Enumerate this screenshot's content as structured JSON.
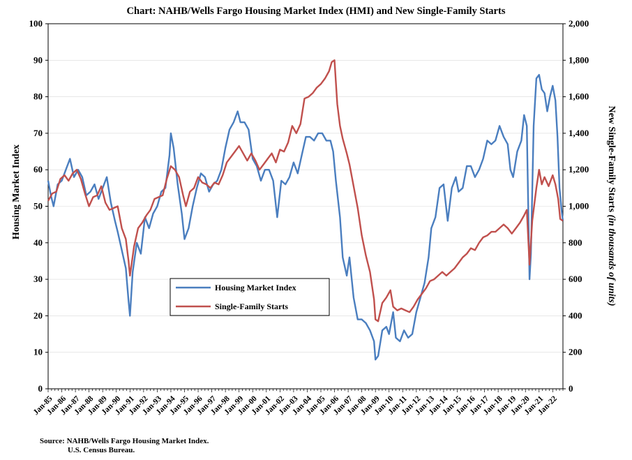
{
  "chart_data": {
    "type": "line",
    "title": "Chart:  NAHB/Wells Fargo Housing Market Index (HMI) and New Single-Family Starts",
    "ylabel_left": "Housing Market Index",
    "ylabel_right_main": "New Single-Family Starts ",
    "ylabel_right_italic": "(in thousands of units)",
    "y_left_lim": [
      0,
      100
    ],
    "y_right_lim": [
      0,
      2000
    ],
    "y_left_ticks": [
      "0",
      "10",
      "20",
      "30",
      "40",
      "50",
      "60",
      "70",
      "80",
      "90",
      "100"
    ],
    "y_right_ticks": [
      "0",
      "200",
      "400",
      "600",
      "800",
      "1,000",
      "1,200",
      "1,400",
      "1,600",
      "1,800",
      "2,000"
    ],
    "x_range": [
      1985.0,
      2022.75
    ],
    "x_ticks": [
      "Jan-85",
      "Jan-86",
      "Jan-87",
      "Jan-88",
      "Jan-89",
      "Jan-90",
      "Jan-91",
      "Jan-92",
      "Jan-93",
      "Jan-94",
      "Jan-95",
      "Jan-96",
      "Jan-97",
      "Jan-98",
      "Jan-99",
      "Jan-00",
      "Jan-01",
      "Jan-02",
      "Jan-03",
      "Jan-04",
      "Jan-05",
      "Jan-06",
      "Jan-07",
      "Jan-08",
      "Jan-09",
      "Jan-10",
      "Jan-11",
      "Jan-12",
      "Jan-13",
      "Jan-14",
      "Jan-15",
      "Jan-16",
      "Jan-17",
      "Jan-18",
      "Jan-19",
      "Jan-20",
      "Jan-21",
      "Jan-22"
    ],
    "legend_position": "lower-left",
    "series": [
      {
        "name": "Housing Market Index",
        "color": "#4a7ebf",
        "axis": "left",
        "points": [
          [
            1985.0,
            57
          ],
          [
            1985.2,
            53
          ],
          [
            1985.4,
            50
          ],
          [
            1985.7,
            56
          ],
          [
            1986.0,
            57
          ],
          [
            1986.3,
            60
          ],
          [
            1986.6,
            63
          ],
          [
            1986.9,
            58
          ],
          [
            1987.2,
            60
          ],
          [
            1987.5,
            58
          ],
          [
            1987.8,
            53
          ],
          [
            1988.1,
            54
          ],
          [
            1988.4,
            56
          ],
          [
            1988.7,
            52
          ],
          [
            1989.0,
            55
          ],
          [
            1989.3,
            58
          ],
          [
            1989.6,
            51
          ],
          [
            1989.9,
            46
          ],
          [
            1990.1,
            43
          ],
          [
            1990.4,
            38
          ],
          [
            1990.7,
            33
          ],
          [
            1990.9,
            24
          ],
          [
            1991.0,
            20
          ],
          [
            1991.2,
            32
          ],
          [
            1991.5,
            40
          ],
          [
            1991.8,
            37
          ],
          [
            1992.1,
            47
          ],
          [
            1992.4,
            44
          ],
          [
            1992.7,
            48
          ],
          [
            1993.0,
            50
          ],
          [
            1993.3,
            54
          ],
          [
            1993.6,
            55
          ],
          [
            1993.9,
            64
          ],
          [
            1994.0,
            70
          ],
          [
            1994.2,
            66
          ],
          [
            1994.5,
            56
          ],
          [
            1994.8,
            48
          ],
          [
            1995.0,
            41
          ],
          [
            1995.3,
            44
          ],
          [
            1995.6,
            50
          ],
          [
            1995.9,
            55
          ],
          [
            1996.2,
            59
          ],
          [
            1996.5,
            58
          ],
          [
            1996.8,
            54
          ],
          [
            1997.1,
            56
          ],
          [
            1997.4,
            57
          ],
          [
            1997.7,
            60
          ],
          [
            1998.0,
            66
          ],
          [
            1998.3,
            71
          ],
          [
            1998.6,
            73
          ],
          [
            1998.9,
            76
          ],
          [
            1999.1,
            73
          ],
          [
            1999.4,
            73
          ],
          [
            1999.7,
            71
          ],
          [
            2000.0,
            63
          ],
          [
            2000.3,
            61
          ],
          [
            2000.6,
            57
          ],
          [
            2000.9,
            60
          ],
          [
            2001.2,
            60
          ],
          [
            2001.5,
            57
          ],
          [
            2001.8,
            47
          ],
          [
            2002.1,
            57
          ],
          [
            2002.4,
            56
          ],
          [
            2002.7,
            58
          ],
          [
            2003.0,
            62
          ],
          [
            2003.3,
            59
          ],
          [
            2003.6,
            64
          ],
          [
            2003.9,
            69
          ],
          [
            2004.2,
            69
          ],
          [
            2004.5,
            68
          ],
          [
            2004.8,
            70
          ],
          [
            2005.1,
            70
          ],
          [
            2005.4,
            68
          ],
          [
            2005.7,
            68
          ],
          [
            2005.9,
            65
          ],
          [
            2006.1,
            57
          ],
          [
            2006.4,
            47
          ],
          [
            2006.6,
            36
          ],
          [
            2006.9,
            31
          ],
          [
            2007.1,
            36
          ],
          [
            2007.4,
            25
          ],
          [
            2007.7,
            19
          ],
          [
            2008.0,
            19
          ],
          [
            2008.3,
            18
          ],
          [
            2008.6,
            16
          ],
          [
            2008.9,
            13
          ],
          [
            2009.0,
            8
          ],
          [
            2009.2,
            9
          ],
          [
            2009.5,
            16
          ],
          [
            2009.8,
            17
          ],
          [
            2010.0,
            15
          ],
          [
            2010.3,
            21
          ],
          [
            2010.5,
            14
          ],
          [
            2010.8,
            13
          ],
          [
            2011.1,
            16
          ],
          [
            2011.4,
            14
          ],
          [
            2011.7,
            15
          ],
          [
            2012.0,
            21
          ],
          [
            2012.3,
            25
          ],
          [
            2012.6,
            29
          ],
          [
            2012.9,
            36
          ],
          [
            2013.1,
            44
          ],
          [
            2013.4,
            47
          ],
          [
            2013.7,
            55
          ],
          [
            2014.0,
            56
          ],
          [
            2014.3,
            46
          ],
          [
            2014.6,
            55
          ],
          [
            2014.9,
            58
          ],
          [
            2015.1,
            54
          ],
          [
            2015.4,
            55
          ],
          [
            2015.7,
            61
          ],
          [
            2016.0,
            61
          ],
          [
            2016.3,
            58
          ],
          [
            2016.6,
            60
          ],
          [
            2016.9,
            63
          ],
          [
            2017.2,
            68
          ],
          [
            2017.5,
            67
          ],
          [
            2017.8,
            68
          ],
          [
            2018.1,
            72
          ],
          [
            2018.4,
            69
          ],
          [
            2018.7,
            67
          ],
          [
            2018.9,
            60
          ],
          [
            2019.1,
            58
          ],
          [
            2019.4,
            65
          ],
          [
            2019.7,
            68
          ],
          [
            2019.9,
            75
          ],
          [
            2020.1,
            72
          ],
          [
            2020.3,
            30
          ],
          [
            2020.4,
            37
          ],
          [
            2020.6,
            72
          ],
          [
            2020.8,
            85
          ],
          [
            2021.0,
            86
          ],
          [
            2021.2,
            82
          ],
          [
            2021.4,
            81
          ],
          [
            2021.6,
            76
          ],
          [
            2021.8,
            80
          ],
          [
            2022.0,
            83
          ],
          [
            2022.2,
            79
          ],
          [
            2022.35,
            69
          ],
          [
            2022.5,
            55
          ],
          [
            2022.65,
            49
          ],
          [
            2022.75,
            46
          ]
        ]
      },
      {
        "name": "Single-Family Starts",
        "color": "#c0504d",
        "axis": "right",
        "points": [
          [
            1985.0,
            1030
          ],
          [
            1985.3,
            1070
          ],
          [
            1985.6,
            1080
          ],
          [
            1985.9,
            1150
          ],
          [
            1986.2,
            1170
          ],
          [
            1986.5,
            1140
          ],
          [
            1986.8,
            1180
          ],
          [
            1987.1,
            1200
          ],
          [
            1987.4,
            1150
          ],
          [
            1987.7,
            1070
          ],
          [
            1988.0,
            1000
          ],
          [
            1988.3,
            1050
          ],
          [
            1988.6,
            1060
          ],
          [
            1988.9,
            1110
          ],
          [
            1989.2,
            1020
          ],
          [
            1989.5,
            980
          ],
          [
            1989.8,
            990
          ],
          [
            1990.1,
            1000
          ],
          [
            1990.4,
            880
          ],
          [
            1990.7,
            820
          ],
          [
            1990.9,
            700
          ],
          [
            1991.0,
            620
          ],
          [
            1991.3,
            780
          ],
          [
            1991.6,
            880
          ],
          [
            1991.9,
            910
          ],
          [
            1992.2,
            950
          ],
          [
            1992.5,
            980
          ],
          [
            1992.8,
            1040
          ],
          [
            1993.1,
            1050
          ],
          [
            1993.4,
            1060
          ],
          [
            1993.7,
            1150
          ],
          [
            1994.0,
            1220
          ],
          [
            1994.3,
            1200
          ],
          [
            1994.6,
            1160
          ],
          [
            1994.9,
            1060
          ],
          [
            1995.1,
            1000
          ],
          [
            1995.4,
            1080
          ],
          [
            1995.7,
            1100
          ],
          [
            1996.0,
            1160
          ],
          [
            1996.3,
            1130
          ],
          [
            1996.6,
            1120
          ],
          [
            1996.9,
            1100
          ],
          [
            1997.2,
            1130
          ],
          [
            1997.5,
            1120
          ],
          [
            1997.8,
            1170
          ],
          [
            1998.1,
            1240
          ],
          [
            1998.4,
            1270
          ],
          [
            1998.7,
            1300
          ],
          [
            1999.0,
            1330
          ],
          [
            1999.3,
            1290
          ],
          [
            1999.6,
            1250
          ],
          [
            1999.9,
            1290
          ],
          [
            2000.2,
            1250
          ],
          [
            2000.5,
            1200
          ],
          [
            2000.8,
            1230
          ],
          [
            2001.1,
            1260
          ],
          [
            2001.4,
            1290
          ],
          [
            2001.7,
            1240
          ],
          [
            2002.0,
            1310
          ],
          [
            2002.3,
            1300
          ],
          [
            2002.6,
            1350
          ],
          [
            2002.9,
            1440
          ],
          [
            2003.2,
            1400
          ],
          [
            2003.5,
            1450
          ],
          [
            2003.8,
            1590
          ],
          [
            2004.1,
            1600
          ],
          [
            2004.4,
            1620
          ],
          [
            2004.7,
            1650
          ],
          [
            2005.0,
            1670
          ],
          [
            2005.3,
            1700
          ],
          [
            2005.6,
            1740
          ],
          [
            2005.8,
            1790
          ],
          [
            2006.0,
            1800
          ],
          [
            2006.2,
            1560
          ],
          [
            2006.4,
            1440
          ],
          [
            2006.6,
            1370
          ],
          [
            2006.9,
            1290
          ],
          [
            2007.1,
            1230
          ],
          [
            2007.4,
            1110
          ],
          [
            2007.7,
            990
          ],
          [
            2008.0,
            840
          ],
          [
            2008.3,
            730
          ],
          [
            2008.6,
            640
          ],
          [
            2008.9,
            490
          ],
          [
            2009.0,
            380
          ],
          [
            2009.2,
            370
          ],
          [
            2009.5,
            470
          ],
          [
            2009.8,
            500
          ],
          [
            2010.1,
            540
          ],
          [
            2010.3,
            450
          ],
          [
            2010.6,
            430
          ],
          [
            2010.9,
            440
          ],
          [
            2011.2,
            430
          ],
          [
            2011.5,
            420
          ],
          [
            2011.8,
            450
          ],
          [
            2012.1,
            490
          ],
          [
            2012.4,
            520
          ],
          [
            2012.7,
            550
          ],
          [
            2013.0,
            590
          ],
          [
            2013.3,
            600
          ],
          [
            2013.6,
            620
          ],
          [
            2013.9,
            640
          ],
          [
            2014.2,
            620
          ],
          [
            2014.5,
            640
          ],
          [
            2014.8,
            660
          ],
          [
            2015.1,
            690
          ],
          [
            2015.4,
            720
          ],
          [
            2015.7,
            740
          ],
          [
            2016.0,
            770
          ],
          [
            2016.3,
            760
          ],
          [
            2016.6,
            800
          ],
          [
            2016.9,
            830
          ],
          [
            2017.2,
            840
          ],
          [
            2017.5,
            860
          ],
          [
            2017.8,
            860
          ],
          [
            2018.1,
            880
          ],
          [
            2018.4,
            900
          ],
          [
            2018.7,
            880
          ],
          [
            2019.0,
            850
          ],
          [
            2019.3,
            880
          ],
          [
            2019.6,
            910
          ],
          [
            2019.9,
            950
          ],
          [
            2020.1,
            980
          ],
          [
            2020.3,
            680
          ],
          [
            2020.5,
            920
          ],
          [
            2020.8,
            1100
          ],
          [
            2021.0,
            1200
          ],
          [
            2021.2,
            1120
          ],
          [
            2021.4,
            1160
          ],
          [
            2021.7,
            1110
          ],
          [
            2022.0,
            1170
          ],
          [
            2022.2,
            1120
          ],
          [
            2022.4,
            1040
          ],
          [
            2022.55,
            930
          ],
          [
            2022.75,
            920
          ]
        ]
      }
    ],
    "source_line1": "Source: NAHB/Wells Fargo Housing Market Index.",
    "source_line2": "U.S. Census Bureau."
  }
}
